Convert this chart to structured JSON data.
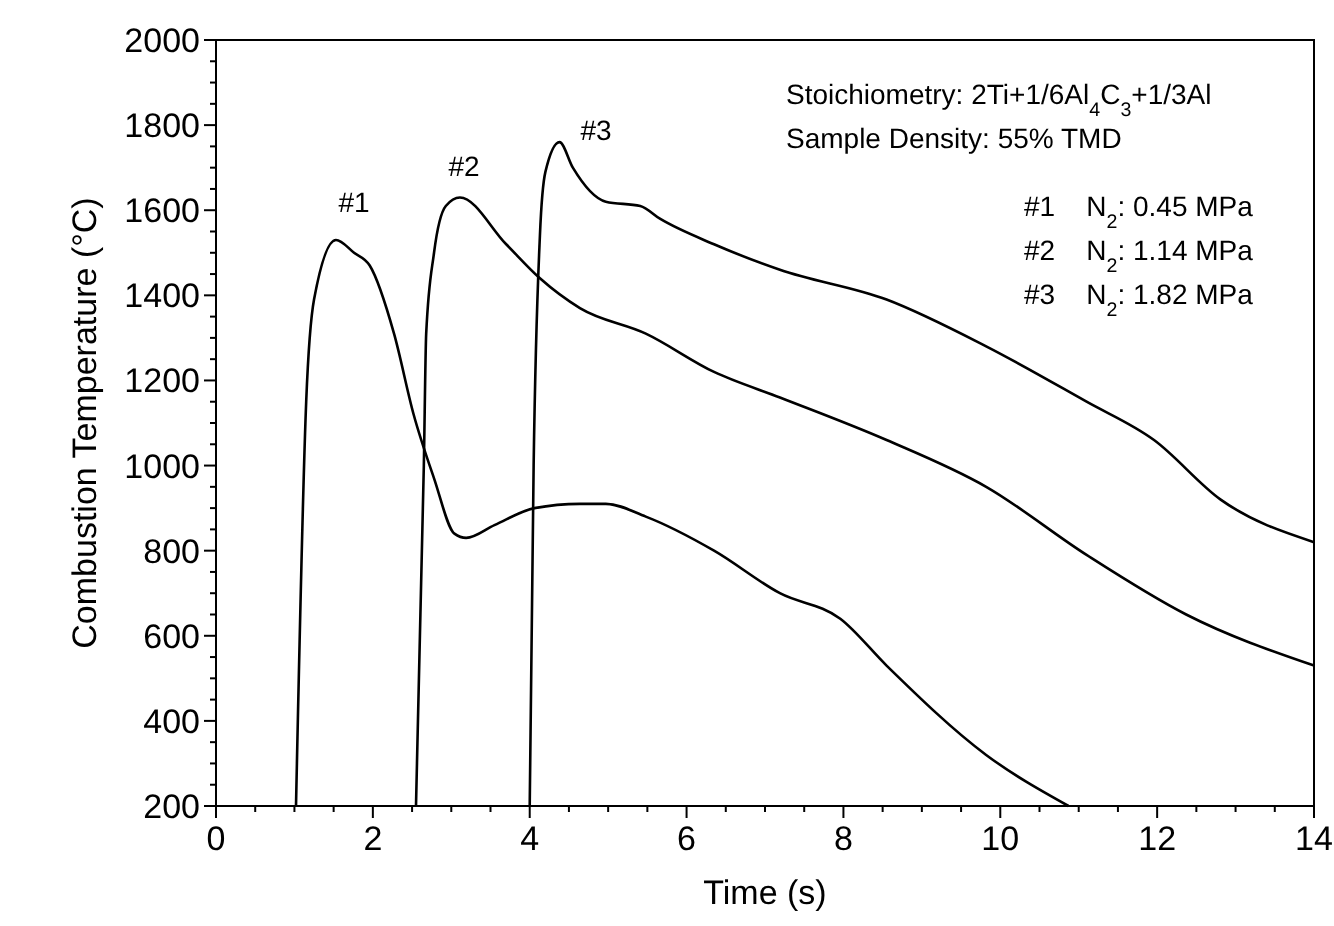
{
  "chart_data": {
    "type": "line",
    "xlabel": "Time (s)",
    "ylabel": "Combustion Temperature (°C)",
    "xlim": [
      0,
      14
    ],
    "ylim": [
      200,
      2000
    ],
    "xticks": [
      0,
      {
        "value": 0.5,
        "label": null
      },
      {
        "value": 1,
        "label": null
      },
      {
        "value": 1.5,
        "label": null
      },
      2,
      {
        "value": 2.5,
        "label": null
      },
      {
        "value": 3,
        "label": null
      },
      {
        "value": 3.5,
        "label": null
      },
      4,
      {
        "value": 4.5,
        "label": null
      },
      {
        "value": 5,
        "label": null
      },
      {
        "value": 5.5,
        "label": null
      },
      6,
      {
        "value": 6.5,
        "label": null
      },
      {
        "value": 7,
        "label": null
      },
      {
        "value": 7.5,
        "label": null
      },
      8,
      {
        "value": 8.5,
        "label": null
      },
      {
        "value": 9,
        "label": null
      },
      {
        "value": 9.5,
        "label": null
      },
      10,
      {
        "value": 10.5,
        "label": null
      },
      {
        "value": 11,
        "label": null
      },
      {
        "value": 11.5,
        "label": null
      },
      12,
      {
        "value": 12.5,
        "label": null
      },
      {
        "value": 13,
        "label": null
      },
      {
        "value": 13.5,
        "label": null
      },
      14
    ],
    "yticks": [
      200,
      {
        "value": 250,
        "label": null
      },
      {
        "value": 300,
        "label": null
      },
      {
        "value": 350,
        "label": null
      },
      400,
      {
        "value": 450,
        "label": null
      },
      {
        "value": 500,
        "label": null
      },
      {
        "value": 550,
        "label": null
      },
      600,
      {
        "value": 650,
        "label": null
      },
      {
        "value": 700,
        "label": null
      },
      {
        "value": 750,
        "label": null
      },
      800,
      {
        "value": 850,
        "label": null
      },
      {
        "value": 900,
        "label": null
      },
      {
        "value": 950,
        "label": null
      },
      1000,
      {
        "value": 1050,
        "label": null
      },
      {
        "value": 1100,
        "label": null
      },
      {
        "value": 1150,
        "label": null
      },
      1200,
      {
        "value": 1250,
        "label": null
      },
      {
        "value": 1300,
        "label": null
      },
      {
        "value": 1350,
        "label": null
      },
      1400,
      {
        "value": 1450,
        "label": null
      },
      {
        "value": 1500,
        "label": null
      },
      {
        "value": 1550,
        "label": null
      },
      1600,
      {
        "value": 1650,
        "label": null
      },
      {
        "value": 1700,
        "label": null
      },
      {
        "value": 1750,
        "label": null
      },
      1800,
      {
        "value": 1850,
        "label": null
      },
      {
        "value": 1900,
        "label": null
      },
      {
        "value": 1950,
        "label": null
      },
      2000
    ],
    "grid": false,
    "marker": "none",
    "line_style": "solid",
    "series": [
      {
        "color": "#000000",
        "x": [
          1.02,
          1.15,
          1.25,
          1.53,
          1.76,
          1.96,
          2.27,
          2.52,
          2.78,
          3.04,
          3.19,
          3.55,
          4.06,
          4.64,
          4.97,
          5.48,
          6.35,
          7.19,
          7.96,
          8.55,
          9.82,
          10.87
        ],
        "values": [
          200,
          1150,
          1390,
          1530,
          1500,
          1470,
          1310,
          1120,
          970,
          840,
          830,
          860,
          900,
          910,
          910,
          880,
          800,
          700,
          640,
          530,
          320,
          200
        ]
      },
      {
        "color": "#000000",
        "x": [
          2.55,
          2.65,
          2.68,
          2.78,
          2.93,
          3.11,
          3.7,
          4.13,
          4.64,
          5.48,
          6.35,
          7.19,
          8.55,
          9.82,
          11.1,
          12.37,
          14
        ],
        "values": [
          200,
          1000,
          1310,
          1500,
          1610,
          1630,
          1520,
          1440,
          1370,
          1310,
          1220,
          1160,
          1060,
          950,
          790,
          650,
          530
        ]
      },
      {
        "color": "#000000",
        "x": [
          4.0,
          4.05,
          4.13,
          4.2,
          4.38,
          4.55,
          4.97,
          5.41,
          5.66,
          6.35,
          7.19,
          8.55,
          9.82,
          11.1,
          11.96,
          12.81,
          14
        ],
        "values": [
          200,
          1000,
          1540,
          1690,
          1760,
          1700,
          1620,
          1610,
          1580,
          1520,
          1460,
          1390,
          1280,
          1150,
          1060,
          920,
          820
        ]
      }
    ],
    "annotations": [
      "#1",
      "#2",
      "#3",
      "Stoichiometry: 2Ti+1/6Al$_{4}$C$_{3}$+1/3Al",
      "Sample Density: 55% TMD",
      "#1    N$_{2}$: 0.45 MPa",
      "#2    N$_{2}$: 1.14 MPa",
      "#3    N$_{2}$: 1.82 MPa"
    ]
  }
}
